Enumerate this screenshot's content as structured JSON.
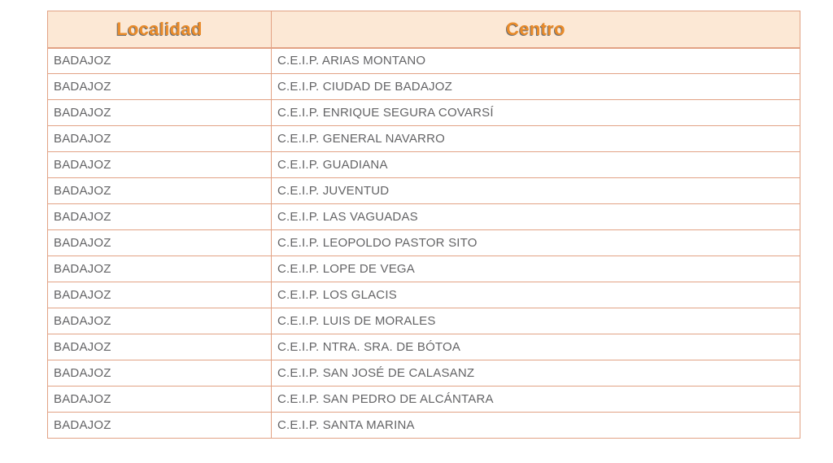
{
  "colors": {
    "header_bg": "#fce8d5",
    "header_text": "#e98b2a",
    "header_text_shadow": "#6e6f71",
    "border_color": "#e2a285",
    "body_text": "#646466"
  },
  "table": {
    "columns": [
      {
        "label": "Localidad"
      },
      {
        "label": "Centro"
      }
    ],
    "rows": [
      {
        "localidad": "BADAJOZ",
        "centro": "C.E.I.P. ARIAS MONTANO"
      },
      {
        "localidad": "BADAJOZ",
        "centro": "C.E.I.P. CIUDAD DE BADAJOZ"
      },
      {
        "localidad": "BADAJOZ",
        "centro": "C.E.I.P. ENRIQUE SEGURA COVARSÍ"
      },
      {
        "localidad": "BADAJOZ",
        "centro": "C.E.I.P. GENERAL NAVARRO"
      },
      {
        "localidad": "BADAJOZ",
        "centro": "C.E.I.P. GUADIANA"
      },
      {
        "localidad": "BADAJOZ",
        "centro": "C.E.I.P. JUVENTUD"
      },
      {
        "localidad": "BADAJOZ",
        "centro": "C.E.I.P. LAS VAGUADAS"
      },
      {
        "localidad": "BADAJOZ",
        "centro": "C.E.I.P. LEOPOLDO PASTOR SITO"
      },
      {
        "localidad": "BADAJOZ",
        "centro": "C.E.I.P. LOPE DE VEGA"
      },
      {
        "localidad": "BADAJOZ",
        "centro": "C.E.I.P. LOS GLACIS"
      },
      {
        "localidad": "BADAJOZ",
        "centro": "C.E.I.P. LUIS DE MORALES"
      },
      {
        "localidad": "BADAJOZ",
        "centro": "C.E.I.P. NTRA. SRA. DE BÓTOA"
      },
      {
        "localidad": "BADAJOZ",
        "centro": "C.E.I.P. SAN JOSÉ DE CALASANZ"
      },
      {
        "localidad": "BADAJOZ",
        "centro": "C.E.I.P. SAN PEDRO DE ALCÁNTARA"
      },
      {
        "localidad": "BADAJOZ",
        "centro": "C.E.I.P. SANTA MARINA"
      }
    ]
  }
}
